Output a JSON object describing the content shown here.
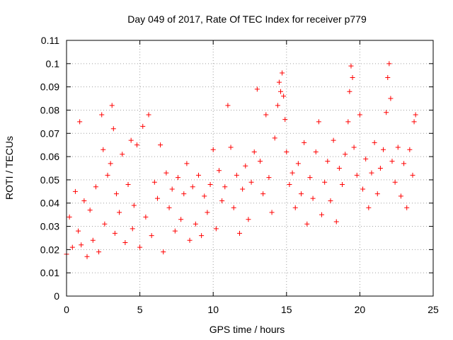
{
  "chart_data": {
    "type": "scatter",
    "title": "Day 049 of 2017, Rate Of TEC Index for receiver p779",
    "xlabel": "GPS time / hours",
    "ylabel": "ROTI / TECUs",
    "xlim": [
      0,
      25
    ],
    "ylim": [
      0,
      0.11
    ],
    "x_ticks": [
      0,
      5,
      10,
      15,
      20,
      25
    ],
    "x_tick_labels": [
      "0",
      "5",
      "10",
      "15",
      "20",
      "25"
    ],
    "y_ticks": [
      0,
      0.01,
      0.02,
      0.03,
      0.04,
      0.05,
      0.06,
      0.07,
      0.08,
      0.09,
      0.1,
      0.11
    ],
    "y_tick_labels": [
      "0",
      "0.01",
      "0.02",
      "0.03",
      "0.04",
      "0.05",
      "0.06",
      "0.07",
      "0.08",
      "0.09",
      "0.1",
      "0.11"
    ],
    "grid": true,
    "marker": "+",
    "marker_color": "#ff0000",
    "series": [
      {
        "name": "ROTI",
        "x": [
          0.0,
          0.2,
          0.4,
          0.6,
          0.8,
          0.9,
          1.0,
          1.2,
          1.4,
          1.6,
          1.8,
          2.0,
          2.2,
          2.4,
          2.5,
          2.6,
          2.8,
          3.0,
          3.1,
          3.2,
          3.3,
          3.4,
          3.6,
          3.8,
          4.0,
          4.2,
          4.4,
          4.5,
          4.6,
          4.8,
          5.0,
          5.2,
          5.4,
          5.6,
          5.8,
          6.0,
          6.2,
          6.4,
          6.6,
          6.8,
          7.0,
          7.2,
          7.4,
          7.6,
          7.8,
          8.0,
          8.2,
          8.4,
          8.6,
          8.8,
          9.0,
          9.2,
          9.4,
          9.6,
          9.8,
          10.0,
          10.2,
          10.4,
          10.6,
          10.8,
          11.0,
          11.2,
          11.4,
          11.6,
          11.8,
          12.0,
          12.2,
          12.4,
          12.6,
          12.8,
          13.0,
          13.2,
          13.4,
          13.6,
          13.8,
          14.0,
          14.2,
          14.4,
          14.5,
          14.6,
          14.7,
          14.8,
          14.9,
          15.0,
          15.2,
          15.4,
          15.6,
          15.8,
          16.0,
          16.2,
          16.4,
          16.6,
          16.8,
          17.0,
          17.2,
          17.4,
          17.6,
          17.8,
          18.0,
          18.2,
          18.4,
          18.6,
          18.8,
          19.0,
          19.2,
          19.3,
          19.4,
          19.5,
          19.6,
          19.8,
          20.0,
          20.2,
          20.4,
          20.6,
          20.8,
          21.0,
          21.2,
          21.4,
          21.6,
          21.8,
          21.9,
          22.0,
          22.1,
          22.2,
          22.4,
          22.6,
          22.8,
          23.0,
          23.2,
          23.4,
          23.6,
          23.7,
          23.8
        ],
        "y": [
          0.018,
          0.034,
          0.021,
          0.045,
          0.028,
          0.075,
          0.022,
          0.041,
          0.017,
          0.037,
          0.024,
          0.047,
          0.019,
          0.078,
          0.063,
          0.031,
          0.052,
          0.057,
          0.082,
          0.072,
          0.027,
          0.044,
          0.036,
          0.061,
          0.023,
          0.048,
          0.067,
          0.029,
          0.039,
          0.065,
          0.021,
          0.073,
          0.034,
          0.078,
          0.026,
          0.049,
          0.042,
          0.065,
          0.019,
          0.053,
          0.038,
          0.046,
          0.028,
          0.051,
          0.033,
          0.044,
          0.057,
          0.024,
          0.047,
          0.031,
          0.052,
          0.026,
          0.043,
          0.036,
          0.048,
          0.063,
          0.029,
          0.054,
          0.041,
          0.047,
          0.082,
          0.064,
          0.038,
          0.052,
          0.027,
          0.046,
          0.056,
          0.033,
          0.049,
          0.062,
          0.089,
          0.058,
          0.044,
          0.078,
          0.051,
          0.036,
          0.068,
          0.082,
          0.092,
          0.088,
          0.096,
          0.086,
          0.076,
          0.062,
          0.048,
          0.053,
          0.038,
          0.057,
          0.044,
          0.066,
          0.031,
          0.051,
          0.042,
          0.062,
          0.075,
          0.035,
          0.049,
          0.058,
          0.041,
          0.067,
          0.032,
          0.055,
          0.048,
          0.061,
          0.075,
          0.088,
          0.099,
          0.094,
          0.064,
          0.052,
          0.078,
          0.046,
          0.059,
          0.038,
          0.053,
          0.066,
          0.044,
          0.055,
          0.063,
          0.079,
          0.094,
          0.1,
          0.085,
          0.058,
          0.049,
          0.064,
          0.043,
          0.057,
          0.038,
          0.063,
          0.052,
          0.075,
          0.078
        ]
      }
    ]
  }
}
